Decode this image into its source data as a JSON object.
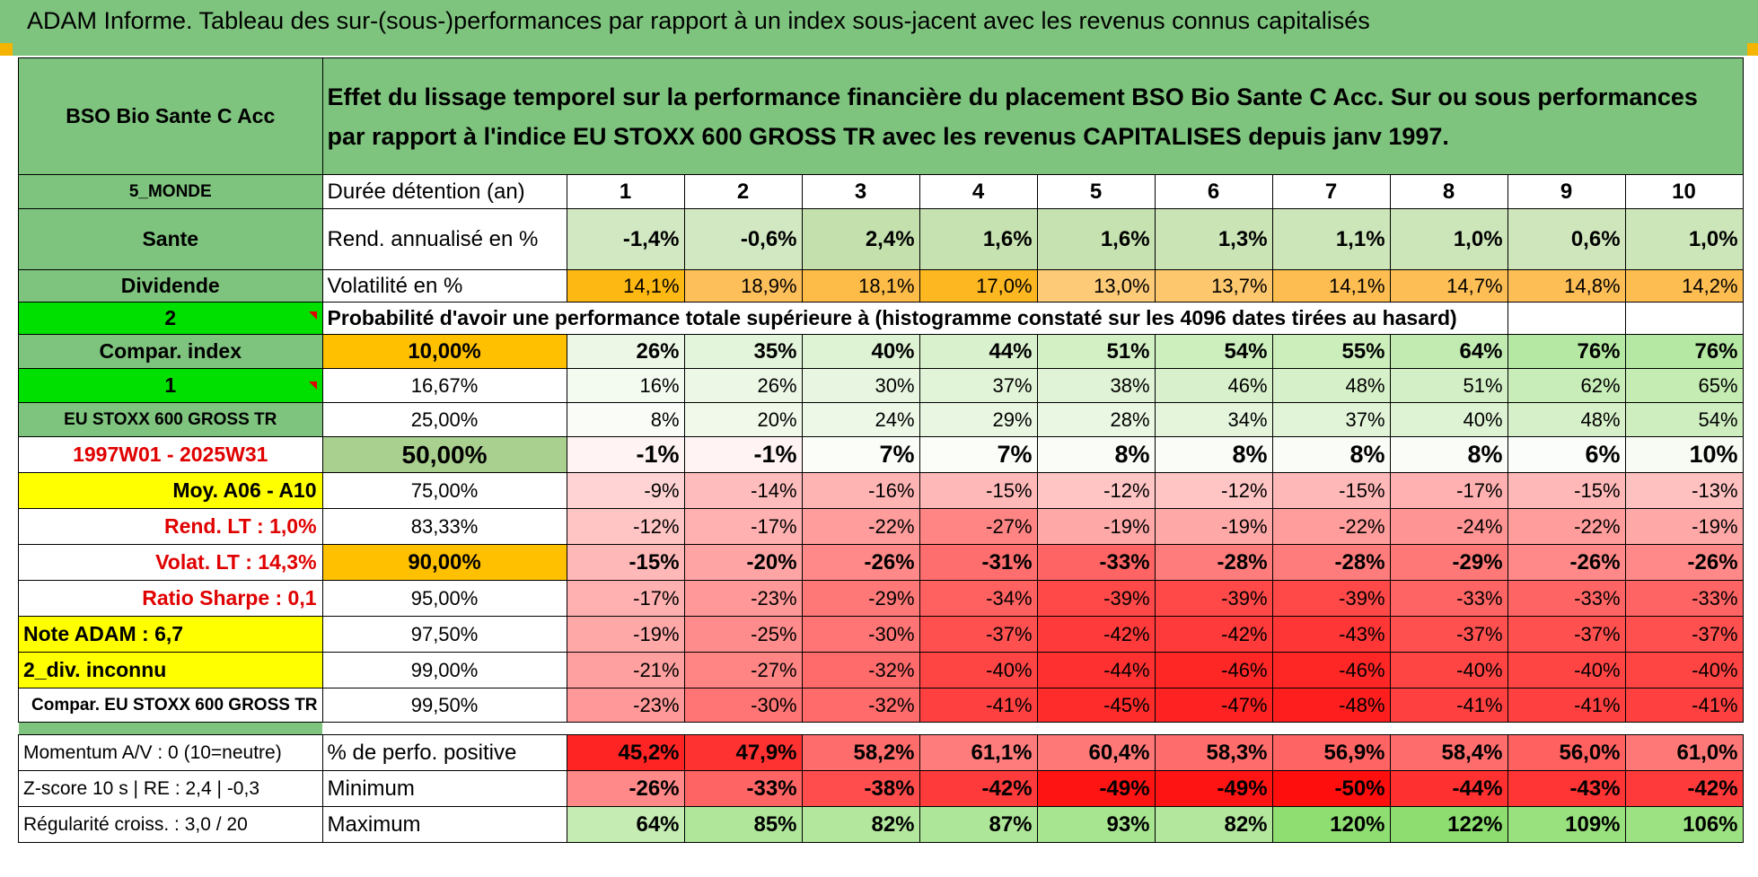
{
  "header": {
    "title": "ADAM Informe. Tableau des sur-(sous-)performances par rapport à un index sous-jacent avec les revenus connus capitalisés"
  },
  "fund": {
    "name": "BSO Bio Sante C Acc",
    "description": "Effet du lissage temporel sur la performance financière du placement BSO Bio Sante C Acc. Sur ou sous performances par rapport à l'indice EU STOXX 600 GROSS TR avec les revenus CAPITALISES depuis janv 1997.",
    "zone": "5_MONDE",
    "sector": "Sante",
    "dividend_label": "Dividende",
    "dividend_value": "2",
    "compar_index_label": "Compar. index",
    "compar_index_value": "1",
    "index_name": "EU STOXX 600 GROSS TR",
    "period": "1997W01 - 2025W31",
    "moy": "Moy. A06 - A10",
    "rend_lt": "Rend. LT :    1,0%",
    "volat_lt": "Volat. LT :    14,3%",
    "sharpe": "Ratio Sharpe :    0,1",
    "note": "Note ADAM : 6,7",
    "div_inconnu": "2_div. inconnu",
    "compar_name": "Compar. EU STOXX 600 GROSS TR"
  },
  "holding": {
    "label": "Durée détention (an)",
    "years": [
      "1",
      "2",
      "3",
      "4",
      "5",
      "6",
      "7",
      "8",
      "9",
      "10"
    ]
  },
  "rend": {
    "label": "Rend. annualisé en %",
    "values": [
      "-1,4%",
      "-0,6%",
      "2,4%",
      "1,6%",
      "1,6%",
      "1,3%",
      "1,1%",
      "1,0%",
      "0,6%",
      "1,0%"
    ],
    "colors": [
      "#d2e8c2",
      "#d2e8c2",
      "#c3e0ad",
      "#c6e2b1",
      "#c6e2b1",
      "#cae4b6",
      "#cce5b9",
      "#cce5b9",
      "#cfe6bd",
      "#cce5b9"
    ]
  },
  "vol": {
    "label": "Volatilité en %",
    "values": [
      "14,1%",
      "18,9%",
      "18,1%",
      "17,0%",
      "13,0%",
      "13,7%",
      "14,1%",
      "14,7%",
      "14,8%",
      "14,2%"
    ],
    "colors": [
      "#fdb813",
      "#fdbf5a",
      "#fdbb48",
      "#fcb721",
      "#fdca78",
      "#fdc76d",
      "#fdbd50",
      "#fdbe55",
      "#fdbe55",
      "#fdbd50"
    ]
  },
  "prob_title": "Probabilité d'avoir une performance totale supérieure à (histogramme constaté sur les 4096 dates tirées au hasard)",
  "quantiles": [
    {
      "pct": "10,00%",
      "values": [
        "26%",
        "35%",
        "40%",
        "44%",
        "51%",
        "54%",
        "55%",
        "64%",
        "76%",
        "76%"
      ],
      "colors": [
        "#ecf7e6",
        "#e3f5da",
        "#def3d3",
        "#d9f1cd",
        "#d3f0c5",
        "#ccefbd",
        "#cbeebb",
        "#c2ebb1",
        "#b5e8a2",
        "#b5e8a2"
      ]
    },
    {
      "pct": "16,67%",
      "values": [
        "16%",
        "26%",
        "30%",
        "37%",
        "38%",
        "46%",
        "48%",
        "51%",
        "62%",
        "65%"
      ],
      "colors": [
        "#f3faef",
        "#ecf7e6",
        "#e8f6e1",
        "#e1f4d8",
        "#e0f3d6",
        "#d8f1cc",
        "#d6f0c9",
        "#d3efc6",
        "#c8edb8",
        "#c4ecb3"
      ]
    },
    {
      "pct": "25,00%",
      "values": [
        "8%",
        "20%",
        "24%",
        "29%",
        "28%",
        "34%",
        "37%",
        "40%",
        "48%",
        "54%"
      ],
      "colors": [
        "#f9fcf7",
        "#f0f9ea",
        "#edf8e7",
        "#e9f6e2",
        "#eaf7e3",
        "#e4f5dc",
        "#e1f4d8",
        "#def3d3",
        "#d6f0c9",
        "#cfeec0"
      ]
    },
    {
      "pct": "50,00%",
      "values": [
        "-1%",
        "-1%",
        "7%",
        "7%",
        "8%",
        "8%",
        "8%",
        "8%",
        "6%",
        "10%"
      ],
      "colors": [
        "#fff3f3",
        "#fff3f3",
        "#fbfdf9",
        "#fbfdf9",
        "#fafcf8",
        "#fafcf8",
        "#fafcf8",
        "#fafcf8",
        "#fbfdfa",
        "#f7fbf4"
      ]
    },
    {
      "pct": "75,00%",
      "values": [
        "-9%",
        "-14%",
        "-16%",
        "-15%",
        "-12%",
        "-12%",
        "-15%",
        "-17%",
        "-15%",
        "-13%"
      ],
      "colors": [
        "#ffd3d3",
        "#ffbcbc",
        "#ffb4b4",
        "#ffb8b8",
        "#ffc4c4",
        "#ffc4c4",
        "#ffb8b8",
        "#ffb0b0",
        "#ffb8b8",
        "#ffc0c0"
      ]
    },
    {
      "pct": "83,33%",
      "values": [
        "-12%",
        "-17%",
        "-22%",
        "-27%",
        "-19%",
        "-19%",
        "-22%",
        "-24%",
        "-22%",
        "-19%"
      ],
      "colors": [
        "#ffc4c4",
        "#ffb0b0",
        "#ff9c9c",
        "#ff8484",
        "#ffa8a8",
        "#ffa8a8",
        "#ff9c9c",
        "#ff9494",
        "#ff9c9c",
        "#ffa8a8"
      ]
    },
    {
      "pct": "90,00%",
      "values": [
        "-15%",
        "-20%",
        "-26%",
        "-31%",
        "-33%",
        "-28%",
        "-28%",
        "-29%",
        "-26%",
        "-26%"
      ],
      "colors": [
        "#ffb8b8",
        "#ffa4a4",
        "#ff8888",
        "#ff6e6e",
        "#ff6464",
        "#ff7c7c",
        "#ff7c7c",
        "#ff7878",
        "#ff8888",
        "#ff8888"
      ]
    },
    {
      "pct": "95,00%",
      "values": [
        "-17%",
        "-23%",
        "-29%",
        "-34%",
        "-39%",
        "-39%",
        "-39%",
        "-33%",
        "-33%",
        "-33%"
      ],
      "colors": [
        "#ffb0b0",
        "#ff9898",
        "#ff7878",
        "#ff6060",
        "#ff4848",
        "#ff4848",
        "#ff4848",
        "#ff6464",
        "#ff6464",
        "#ff6464"
      ]
    },
    {
      "pct": "97,50%",
      "values": [
        "-19%",
        "-25%",
        "-30%",
        "-37%",
        "-42%",
        "-42%",
        "-43%",
        "-37%",
        "-37%",
        "-37%"
      ],
      "colors": [
        "#ffa8a8",
        "#ff8c8c",
        "#ff7474",
        "#ff5050",
        "#ff3a3a",
        "#ff3a3a",
        "#ff3636",
        "#ff5050",
        "#ff5050",
        "#ff5050"
      ]
    },
    {
      "pct": "99,00%",
      "values": [
        "-21%",
        "-27%",
        "-32%",
        "-40%",
        "-44%",
        "-46%",
        "-46%",
        "-40%",
        "-40%",
        "-40%"
      ],
      "colors": [
        "#ffa0a0",
        "#ff8484",
        "#ff6a6a",
        "#ff4444",
        "#ff3030",
        "#ff2626",
        "#ff2626",
        "#ff4444",
        "#ff4444",
        "#ff4444"
      ]
    },
    {
      "pct": "99,50%",
      "values": [
        "-23%",
        "-30%",
        "-32%",
        "-41%",
        "-45%",
        "-47%",
        "-48%",
        "-41%",
        "-41%",
        "-41%"
      ],
      "colors": [
        "#ff9898",
        "#ff7474",
        "#ff6a6a",
        "#ff4040",
        "#ff2c2c",
        "#ff2222",
        "#ff1e1e",
        "#ff4040",
        "#ff4040",
        "#ff4040"
      ]
    }
  ],
  "footer": {
    "momentum": "Momentum A/V : 0 (10=neutre)",
    "zscore": "Z-score 10 s | RE : 2,4 | -0,3",
    "regularite": "Régularité croiss. : 3,0 / 20",
    "positive": {
      "label": "% de perfo. positive",
      "values": [
        "45,2%",
        "47,9%",
        "58,2%",
        "61,1%",
        "60,4%",
        "58,3%",
        "56,9%",
        "58,4%",
        "56,0%",
        "61,0%"
      ],
      "colors": [
        "#ff2424",
        "#ff3232",
        "#ff6c6c",
        "#ff7c7c",
        "#ff7878",
        "#ff6c6c",
        "#ff6464",
        "#ff6c6c",
        "#ff6060",
        "#ff7878"
      ]
    },
    "minimum": {
      "label": "Minimum",
      "values": [
        "-26%",
        "-33%",
        "-38%",
        "-42%",
        "-49%",
        "-49%",
        "-50%",
        "-44%",
        "-43%",
        "-42%"
      ],
      "colors": [
        "#ff8888",
        "#ff6464",
        "#ff4c4c",
        "#ff3a3a",
        "#ff1414",
        "#ff1414",
        "#ff0e0e",
        "#ff3030",
        "#ff3434",
        "#ff3a3a"
      ]
    },
    "maximum": {
      "label": "Maximum",
      "values": [
        "64%",
        "85%",
        "82%",
        "87%",
        "93%",
        "82%",
        "120%",
        "122%",
        "109%",
        "106%"
      ],
      "colors": [
        "#c4ecb3",
        "#afe69a",
        "#b2e79d",
        "#ade698",
        "#a7e591",
        "#b2e79d",
        "#8fde72",
        "#8ddd70",
        "#99e17e",
        "#9ce282"
      ]
    }
  }
}
